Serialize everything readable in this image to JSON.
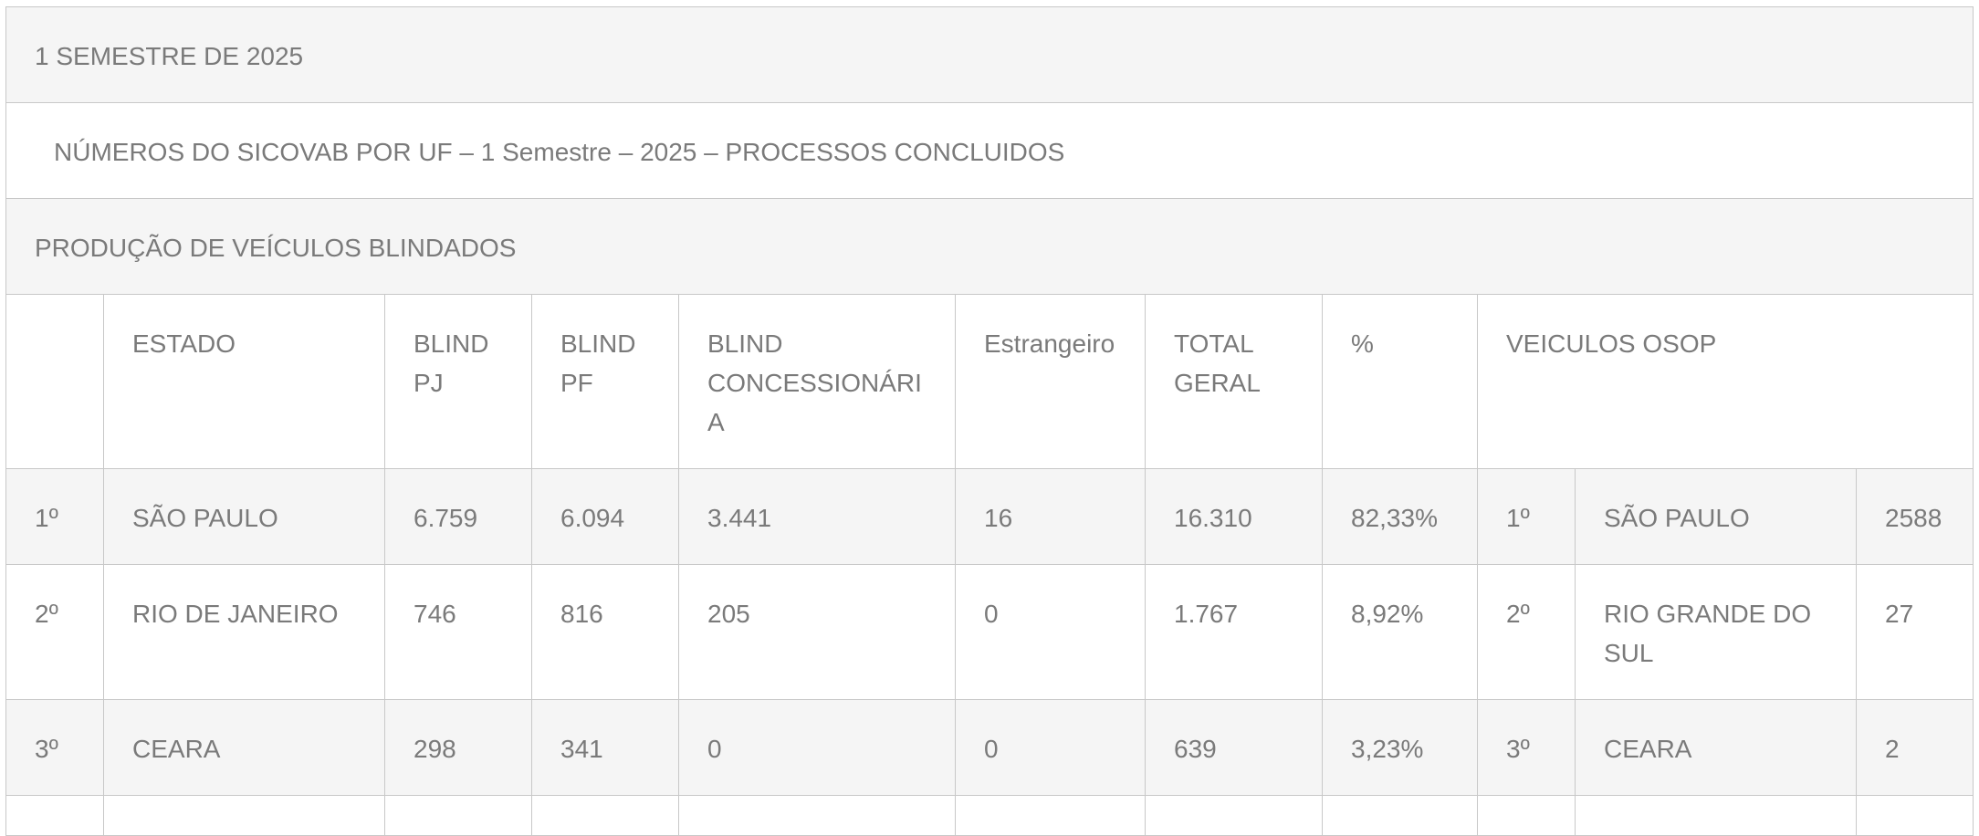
{
  "semester_label": "1 SEMESTRE DE 2025",
  "subtitle": "NÚMEROS DO SICOVAB POR UF – 1 Semestre – 2025 – PROCESSOS CONCLUIDOS",
  "section_label": "PRODUÇÃO DE VEÍCULOS BLINDADOS",
  "headers": {
    "estado": "ESTADO",
    "blind_pj": "BLIND PJ",
    "blind_pf": "BLIND PF",
    "blind_concessionaria": "BLIND CONCESSIONÁRIA",
    "estrangeiro": "Estrangeiro",
    "total_geral": "TOTAL GERAL",
    "percent": "%",
    "veiculos_osop": "VEICULOS OSOP"
  },
  "rows": [
    {
      "rank": "1º",
      "estado": "SÃO PAULO",
      "blind_pj": "6.759",
      "blind_pf": "6.094",
      "blind_concessionaria": "3.441",
      "estrangeiro": "16",
      "total_geral": "16.310",
      "percent": "82,33%",
      "osop_rank": "1º",
      "osop_estado": "SÃO PAULO",
      "osop_count": "2588"
    },
    {
      "rank": "2º",
      "estado": "RIO DE JANEIRO",
      "blind_pj": "746",
      "blind_pf": "816",
      "blind_concessionaria": "205",
      "estrangeiro": "0",
      "total_geral": "1.767",
      "percent": "8,92%",
      "osop_rank": "2º",
      "osop_estado": "RIO GRANDE DO SUL",
      "osop_count": "27"
    },
    {
      "rank": "3º",
      "estado": "CEARA",
      "blind_pj": "298",
      "blind_pf": "341",
      "blind_concessionaria": "0",
      "estrangeiro": "0",
      "total_geral": "639",
      "percent": "3,23%",
      "osop_rank": "3º",
      "osop_estado": "CEARA",
      "osop_count": "2"
    }
  ]
}
